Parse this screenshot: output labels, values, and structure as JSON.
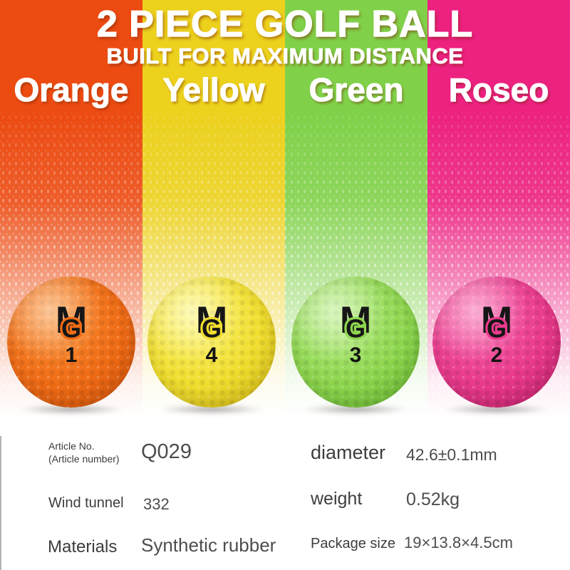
{
  "banner": {
    "title": "2 PIECE GOLF BALL",
    "subtitle": "BUILT FOR MAXIMUM DISTANCE"
  },
  "logo": {
    "letter_m": "M",
    "letter_g": "G"
  },
  "columns": [
    {
      "label": "Orange",
      "stripe": "#ec4b12",
      "number": "1",
      "ball": {
        "light": "#fb9134",
        "base": "#f06c16",
        "dark": "#c94e06"
      }
    },
    {
      "label": "Yellow",
      "stripe": "#ecd11d",
      "number": "4",
      "ball": {
        "light": "#fdf573",
        "base": "#f0dd2e",
        "dark": "#cbb012"
      }
    },
    {
      "label": "Green",
      "stripe": "#80d149",
      "number": "3",
      "ball": {
        "light": "#b8ee83",
        "base": "#8ed64f",
        "dark": "#5fae2a"
      }
    },
    {
      "label": "Roseo",
      "stripe": "#ec2180",
      "number": "2",
      "ball": {
        "light": "#fb63ad",
        "base": "#e93a8c",
        "dark": "#bc1c64"
      }
    }
  ],
  "specs": {
    "left": [
      {
        "label": "Article No.",
        "label2": "(Article number)",
        "value": "Q029"
      },
      {
        "label": "Wind tunnel",
        "value": "332"
      },
      {
        "label": "Materials",
        "value": "Synthetic rubber"
      }
    ],
    "right": [
      {
        "label": "diameter",
        "value": "42.6±0.1mm"
      },
      {
        "label": "weight",
        "value": "0.52kg"
      },
      {
        "label": "Package size",
        "value": "19×13.8×4.5cm"
      }
    ]
  }
}
